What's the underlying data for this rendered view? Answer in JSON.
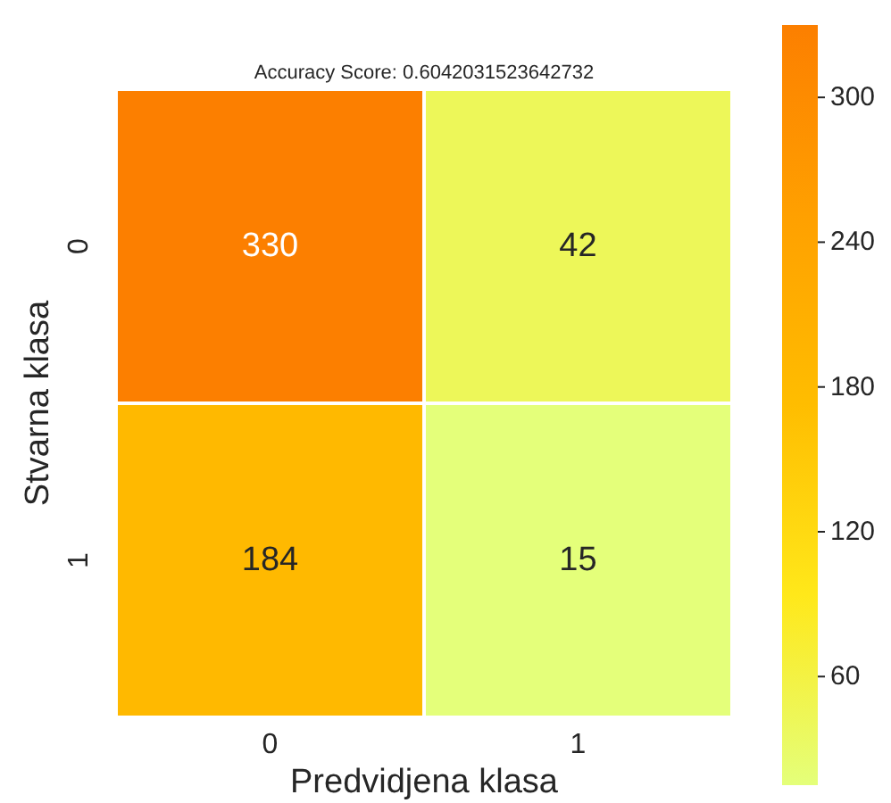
{
  "chart_data": {
    "type": "heatmap",
    "title": "Accuracy Score: 0.6042031523642732",
    "xlabel": "Predvidjena klasa",
    "ylabel": "Stvarna klasa",
    "categories": [
      "0",
      "1"
    ],
    "y_categories": [
      "0",
      "1"
    ],
    "cells": [
      [
        330,
        42
      ],
      [
        184,
        15
      ]
    ],
    "clim": [
      15,
      330
    ],
    "cticks": [
      60,
      120,
      180,
      240,
      300
    ],
    "data_labels": true
  }
}
